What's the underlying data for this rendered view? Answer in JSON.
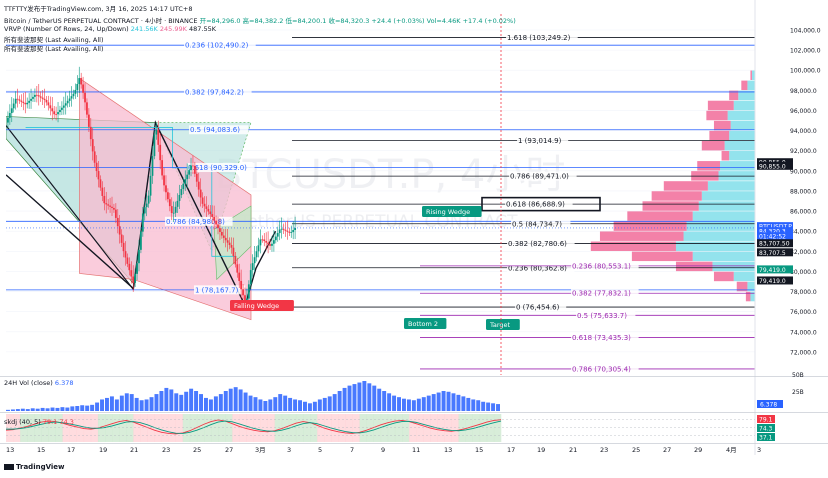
{
  "header": {
    "brand_line": "TTFTTY发布于TradingView.com, 3月 16, 2025 14:17 UTC+8",
    "symbol_line": "Bitcoin / TetherUS PERPETUAL CONTRACT · 4小时 · BINANCE",
    "ohlc": "开=84,296.0  高=84,382.2  低=84,200.1  收=84,320.3  +24.4 (+0.03%)  Vol=4.46K  +17.4 (+0.02%)",
    "vrvp_label": "VRVP (Number Of Rows, 24, Up/Down)",
    "vrvp_values": [
      "241.56K",
      "245.99K",
      "487.55K"
    ],
    "indicator_line_1": "所有斐波那契 (Last Availing, All)",
    "indicator_line_2": "所有斐波那契 (Last Availing, All)"
  },
  "watermark": {
    "symbol": "BTCUSDT.P, 4小时",
    "name": "Bitcoin / TetherUS PERPETUAL CONTRACT"
  },
  "chart_data": {
    "type": "candlestick",
    "ylim": [
      70000,
      104000
    ],
    "y_ticks": [
      104000,
      102000,
      100000,
      98000,
      96000,
      94000,
      92000,
      90000,
      88000,
      86000,
      84000,
      82000,
      80000,
      78000,
      76000,
      74000,
      72000
    ],
    "y_tick_labels": [
      "104,000.0",
      "102,000.0",
      "100,000.0",
      "98,000.0",
      "96,000.0",
      "94,000.0",
      "92,000.0",
      "90,000.0",
      "88,000.0",
      "86,000.0",
      "84,000.0",
      "82,000.0",
      "80,000.0",
      "78,000.0",
      "76,000.0",
      "74,000.0",
      "72,000.0"
    ],
    "x_labels": [
      "13",
      "15",
      "17",
      "19",
      "21",
      "23",
      "25",
      "27",
      "3月",
      "3",
      "5",
      "7",
      "9",
      "11",
      "13",
      "15",
      "17",
      "19",
      "21",
      "23",
      "25",
      "27",
      "29",
      "4月",
      "3"
    ],
    "price_path": [
      [
        0,
        94800
      ],
      [
        2,
        97200
      ],
      [
        4,
        96600
      ],
      [
        6,
        97600
      ],
      [
        8,
        97000
      ],
      [
        10,
        95500
      ],
      [
        12,
        96600
      ],
      [
        14,
        97800
      ],
      [
        15,
        99300
      ],
      [
        16,
        97200
      ],
      [
        18,
        91000
      ],
      [
        20,
        86800
      ],
      [
        22,
        86200
      ],
      [
        24,
        82000
      ],
      [
        26,
        78800
      ],
      [
        27,
        81500
      ],
      [
        28,
        86100
      ],
      [
        29,
        87000
      ],
      [
        30,
        92000
      ],
      [
        30.5,
        94800
      ],
      [
        32,
        89000
      ],
      [
        34,
        85500
      ],
      [
        36,
        88500
      ],
      [
        38,
        90800
      ],
      [
        40,
        86800
      ],
      [
        42,
        85500
      ],
      [
        44,
        83600
      ],
      [
        46,
        82400
      ],
      [
        48,
        78200
      ],
      [
        49,
        76700
      ],
      [
        50,
        80300
      ],
      [
        52,
        83300
      ],
      [
        54,
        82500
      ],
      [
        56,
        84300
      ],
      [
        58,
        83800
      ],
      [
        59,
        84320
      ]
    ],
    "last_price": 84320.3,
    "fib_levels_upper": [
      {
        "label": "1.618 (103,249.2)",
        "value": 103249.2
      },
      {
        "label": "0.236 (102,490.2)",
        "value": 102490.2
      },
      {
        "label": "0.382 (97,842.2)",
        "value": 97842.2
      },
      {
        "label": "0.5 (94,083.6)",
        "value": 94083.6
      },
      {
        "label": "1 (93,014.9)",
        "value": 93014.9
      },
      {
        "label": "0.618 (90,329.0)",
        "value": 90329.0
      },
      {
        "label": "0.786 (89,471.0)",
        "value": 89471.0
      },
      {
        "label": "0.618 (86,688.9)",
        "value": 86688.9
      },
      {
        "label": "0.786 (84,980.8)",
        "value": 84980.8
      },
      {
        "label": "0.5 (84,734.7)",
        "value": 84734.7
      },
      {
        "label": "0.382 (82,780.6)",
        "value": 82780.6
      },
      {
        "label": "0.236 (80,362.8)",
        "value": 80362.8
      },
      {
        "label": "0.236 (80,553.1)",
        "value": 80553.1
      },
      {
        "label": "1 (78,167.7)",
        "value": 78167.7
      },
      {
        "label": "0.382 (77,832.1)",
        "value": 77832.1
      },
      {
        "label": "0 (76,454.6)",
        "value": 76454.6
      },
      {
        "label": "0.5 (75,633.7)",
        "value": 75633.7
      },
      {
        "label": "0.618 (73,435.3)",
        "value": 73435.3
      },
      {
        "label": "0.786 (70,305.4)",
        "value": 70305.4
      }
    ],
    "price_badges": [
      {
        "label": "90,855.0",
        "value": 90855,
        "color": "#131722"
      },
      {
        "label": "90,855.0",
        "value": 90500,
        "color": "#131722"
      },
      {
        "label": "BTCUSDT.P",
        "value": 84500,
        "color": "#2962ff"
      },
      {
        "label": "84,320.3",
        "value": 84000,
        "color": "#2962ff"
      },
      {
        "label": "01:42:52",
        "value": 83500,
        "color": "#2962ff"
      },
      {
        "label": "83,707.50",
        "value": 82800,
        "color": "#131722"
      },
      {
        "label": "83,707.5",
        "value": 81900,
        "color": "#131722"
      },
      {
        "label": "79,419.0",
        "value": 80200,
        "color": "#089981"
      },
      {
        "label": "79,419.0",
        "value": 79100,
        "color": "#131722"
      }
    ],
    "annotations": [
      {
        "label": "Rising Wedge",
        "color": "#089981"
      },
      {
        "label": "Falling Wedge",
        "color": "#f23645"
      },
      {
        "label": "Bottom 2",
        "color": "#089981"
      },
      {
        "label": "Target",
        "color": "#089981"
      }
    ],
    "volume_profile_rows": [
      {
        "price": 99500,
        "up": 4,
        "down": 2
      },
      {
        "price": 98500,
        "up": 10,
        "down": 8
      },
      {
        "price": 97500,
        "up": 22,
        "down": 12
      },
      {
        "price": 96500,
        "up": 28,
        "down": 34
      },
      {
        "price": 95500,
        "up": 36,
        "down": 28
      },
      {
        "price": 94500,
        "up": 32,
        "down": 22
      },
      {
        "price": 93500,
        "up": 34,
        "down": 26
      },
      {
        "price": 92500,
        "up": 40,
        "down": 30
      },
      {
        "price": 91500,
        "up": 34,
        "down": 10
      },
      {
        "price": 90500,
        "up": 46,
        "down": 30
      },
      {
        "price": 89500,
        "up": 48,
        "down": 36
      },
      {
        "price": 88500,
        "up": 62,
        "down": 58
      },
      {
        "price": 87500,
        "up": 70,
        "down": 66
      },
      {
        "price": 86500,
        "up": 74,
        "down": 74
      },
      {
        "price": 85500,
        "up": 82,
        "down": 86
      },
      {
        "price": 84500,
        "up": 90,
        "down": 96
      },
      {
        "price": 83500,
        "up": 94,
        "down": 110
      },
      {
        "price": 82500,
        "up": 104,
        "down": 112
      },
      {
        "price": 81500,
        "up": 82,
        "down": 80
      },
      {
        "price": 80500,
        "up": 56,
        "down": 48
      },
      {
        "price": 79500,
        "up": 28,
        "down": 26
      },
      {
        "price": 78500,
        "up": 10,
        "down": 14
      },
      {
        "price": 77500,
        "up": 6,
        "down": 6
      }
    ],
    "volume_pane": {
      "label": "24H Vol (close)",
      "value_label": "6.378",
      "y_ticks": [
        "50B",
        "25B"
      ],
      "values": [
        3,
        4,
        5,
        6,
        5,
        7,
        6,
        8,
        7,
        9,
        8,
        10,
        9,
        12,
        13,
        15,
        14,
        16,
        22,
        30,
        34,
        38,
        30,
        40,
        46,
        44,
        34,
        28,
        30,
        36,
        44,
        52,
        60,
        56,
        46,
        42,
        50,
        58,
        52,
        44,
        34,
        30,
        38,
        44,
        52,
        58,
        62,
        56,
        48,
        40,
        36,
        30,
        26,
        30,
        36,
        44,
        40,
        34,
        30,
        28,
        24,
        20,
        24,
        30,
        34,
        38,
        44,
        52,
        60,
        66,
        70,
        74,
        78,
        72,
        66,
        58,
        52,
        46,
        40,
        36,
        32,
        30,
        28,
        32,
        36,
        40,
        44,
        48,
        52,
        50,
        46,
        42,
        38,
        34,
        30,
        28,
        24,
        22,
        20,
        18
      ]
    },
    "oscillator_pane": {
      "label": "skdj (40, 5)",
      "values_label": "79.1  74.3",
      "right_labels": [
        {
          "label": "79.1",
          "color": "#f23645"
        },
        {
          "label": "74.3",
          "color": "#089981"
        },
        {
          "label": "37.1",
          "color": "#089981"
        }
      ],
      "k": [
        40,
        42,
        48,
        54,
        62,
        70,
        74,
        72,
        66,
        58,
        52,
        46,
        44,
        48,
        56,
        64,
        72,
        76,
        70,
        60,
        50,
        40,
        32,
        28,
        26,
        30,
        38,
        50,
        62,
        72,
        78,
        74,
        64,
        54,
        46,
        40,
        36,
        34,
        38,
        46,
        56,
        66,
        72,
        68,
        58,
        48,
        40,
        34,
        30,
        28,
        32,
        40,
        50,
        60,
        68,
        74,
        76,
        72,
        64,
        56,
        48,
        42,
        38,
        36,
        40,
        46,
        54,
        62,
        70,
        76,
        79
      ],
      "d": [
        44,
        44,
        46,
        50,
        56,
        62,
        68,
        70,
        68,
        63,
        58,
        52,
        48,
        47,
        50,
        56,
        63,
        70,
        72,
        68,
        60,
        50,
        41,
        34,
        29,
        28,
        32,
        40,
        50,
        61,
        70,
        74,
        71,
        63,
        55,
        47,
        41,
        37,
        36,
        40,
        47,
        56,
        64,
        68,
        64,
        56,
        48,
        41,
        35,
        31,
        30,
        34,
        41,
        50,
        59,
        67,
        72,
        73,
        69,
        62,
        55,
        48,
        43,
        39,
        38,
        41,
        46,
        53,
        61,
        68,
        74
      ]
    }
  },
  "footer": {
    "brand": "TradingView"
  }
}
